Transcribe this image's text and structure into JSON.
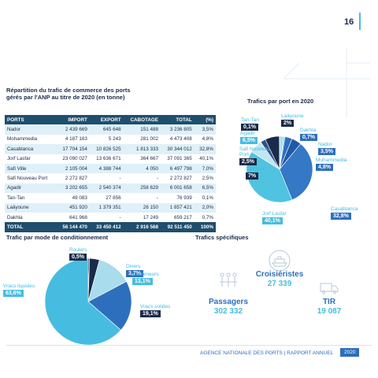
{
  "page_number": "16",
  "table": {
    "title": "Répartition du trafic de commerce des ports gérés par l'ANP au titre de 2020 (en tonne)",
    "header": [
      "PORTS",
      "IMPORT",
      "EXPORT",
      "CABOTAGE",
      "TOTAL",
      "(%)"
    ],
    "rows": [
      [
        "Nador",
        "2 439 669",
        "645 648",
        "151 488",
        "3 236 805",
        "3,5%"
      ],
      [
        "Mohammedia",
        "4 187 163",
        "5 243",
        "281 002",
        "4 473 408",
        "4,8%"
      ],
      [
        "Casablanca",
        "17 704 154",
        "10 826 525",
        "1 813 333",
        "30 344 012",
        "32,8%"
      ],
      [
        "Jorf Lasfar",
        "23 090 027",
        "13 636 671",
        "364 667",
        "37 091 365",
        "40,1%"
      ],
      [
        "Safi Ville",
        "2 105 004",
        "4 388 744",
        "4 050",
        "6 497 798",
        "7,0%"
      ],
      [
        "Safi Nouveau Port",
        "2 272 827",
        "-",
        "-",
        "2 272 827",
        "2,5%"
      ],
      [
        "Agadir",
        "3 202 655",
        "2 540 374",
        "258 629",
        "6 001 658",
        "6,5%"
      ],
      [
        "Tan-Tan",
        "49 083",
        "27 856",
        "-",
        "76 939",
        "0,1%"
      ],
      [
        "Laâyoune",
        "451 920",
        "1 379 351",
        "26 150",
        "1 857 421",
        "2,0%"
      ],
      [
        "Dakhla",
        "641 968",
        "-",
        "17 249",
        "659 217",
        "0,7%"
      ]
    ],
    "total": [
      "TOTAL",
      "56 144 470",
      "33 450 412",
      "2 916 568",
      "92 511 450",
      "100%"
    ]
  },
  "chart_data": [
    {
      "type": "pie",
      "title": "Trafics par port en 2020",
      "categories": [
        "Laâyoune",
        "Dakhla",
        "Nador",
        "Mohammedia",
        "Casablanca",
        "Jorf Lasfar",
        "Agadir",
        "Safi Nouveau Port",
        "Safi Ville",
        "Tan-Tan"
      ],
      "values": [
        2,
        0.7,
        3.5,
        4.8,
        32.8,
        40.1,
        6.5,
        2.5,
        7,
        0.1
      ],
      "value_labels": [
        "2%",
        "0,7%",
        "3,5%",
        "4,8%",
        "32,8%",
        "40,1%",
        "6,5%",
        "2,5%",
        "7%",
        "0,1%"
      ],
      "colors": [
        "#a9dcec",
        "#6fcbe6",
        "#2e6fbd",
        "#1f5aa6",
        "#3478c6",
        "#4fc3e0",
        "#bfe6f2",
        "#2a4f8a",
        "#1b2a4a",
        "#0f1d38"
      ]
    },
    {
      "type": "pie",
      "title": "Trafic par mode de conditionnement",
      "categories": [
        "Roulers",
        "Divers",
        "Conteneurs",
        "Vracs solides",
        "Vracs liquides"
      ],
      "values": [
        0.5,
        3.7,
        13.1,
        19.1,
        63.6
      ],
      "value_labels": [
        "0,5%",
        "3,7%",
        "13,1%",
        "19,1%",
        "63,6%"
      ],
      "colors": [
        "#1b2a4a",
        "#1b2a4a",
        "#a9dcec",
        "#2e6fbd",
        "#46bde0"
      ]
    }
  ],
  "specific_traffic": {
    "title": "Trafics spécifiques",
    "items": [
      {
        "label": "Croisiéristes",
        "value": "27 339"
      },
      {
        "label": "Passagers",
        "value": "302 332"
      },
      {
        "label": "TIR",
        "value": "19 087"
      }
    ]
  },
  "footer": {
    "left": "AGENCE NATIONALE DES PORTS  |  RAPPORT ANNUEL",
    "year": "2020"
  }
}
